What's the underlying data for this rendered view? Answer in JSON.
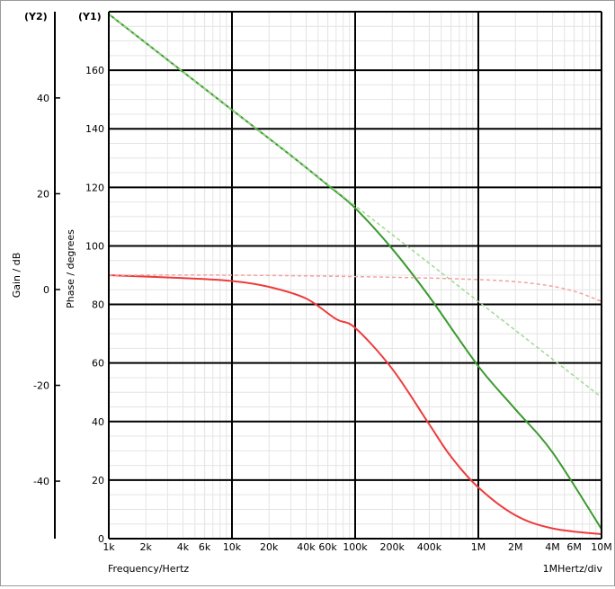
{
  "chart_data": {
    "type": "line",
    "x_scale": "log",
    "xlim": [
      1000,
      10000000
    ],
    "y1": {
      "tag": "(Y1)",
      "label": "Phase / degrees",
      "lim": [
        0,
        180
      ],
      "ticks": [
        0,
        20,
        40,
        60,
        80,
        100,
        120,
        140,
        160
      ]
    },
    "y2": {
      "tag": "(Y2)",
      "label": "Gain / dB",
      "lim": [
        -52,
        58
      ],
      "ticks": [
        -40,
        -20,
        0,
        20,
        40
      ]
    },
    "x_ticks": [
      {
        "value": 1000,
        "label": "1k"
      },
      {
        "value": 2000,
        "label": "2k"
      },
      {
        "value": 4000,
        "label": "4k"
      },
      {
        "value": 6000,
        "label": "6k"
      },
      {
        "value": 10000,
        "label": "10k"
      },
      {
        "value": 20000,
        "label": "20k"
      },
      {
        "value": 40000,
        "label": "40k"
      },
      {
        "value": 60000,
        "label": "60k"
      },
      {
        "value": 100000,
        "label": "100k"
      },
      {
        "value": 200000,
        "label": "200k"
      },
      {
        "value": 400000,
        "label": "400k"
      },
      {
        "value": 1000000,
        "label": "1M"
      },
      {
        "value": 2000000,
        "label": "2M"
      },
      {
        "value": 4000000,
        "label": "4M"
      },
      {
        "value": 6000000,
        "label": "6M"
      },
      {
        "value": 10000000,
        "label": "10M"
      }
    ],
    "xlabel": "Frequency/Hertz",
    "xdiv_label": "1MHertz/div",
    "grid": true,
    "series": [
      {
        "axis": "y2",
        "color": "#3a9a2e",
        "style": "solid",
        "x": [
          1000,
          10000,
          30000,
          60000,
          100000,
          200000,
          400000,
          1000000,
          2000000,
          4000000,
          10000000
        ],
        "y": [
          57.5,
          37.5,
          28,
          21.8,
          17,
          8.5,
          -1.5,
          -16,
          -25,
          -34,
          -50
        ]
      },
      {
        "axis": "y2",
        "color": "#9fd88f",
        "style": "dashed",
        "x": [
          1000,
          10000,
          100000,
          1000000,
          10000000
        ],
        "y": [
          57.5,
          37.5,
          17.5,
          -2.5,
          -22.5
        ]
      },
      {
        "axis": "y1",
        "color": "#ee3b3b",
        "style": "solid",
        "x": [
          1000,
          4000,
          10000,
          20000,
          40000,
          70000,
          100000,
          200000,
          400000,
          600000,
          1000000,
          2000000,
          4000000,
          10000000
        ],
        "y": [
          90,
          89,
          88,
          86,
          82,
          75,
          72,
          58,
          39,
          28,
          17.5,
          8,
          3.5,
          1.5
        ]
      },
      {
        "axis": "y1",
        "color": "#f6a0a0",
        "style": "dashed",
        "x": [
          1000,
          10000,
          100000,
          1000000,
          3000000,
          6000000,
          10000000
        ],
        "y": [
          90,
          90,
          89.5,
          88.5,
          87,
          84.5,
          81
        ]
      }
    ]
  }
}
